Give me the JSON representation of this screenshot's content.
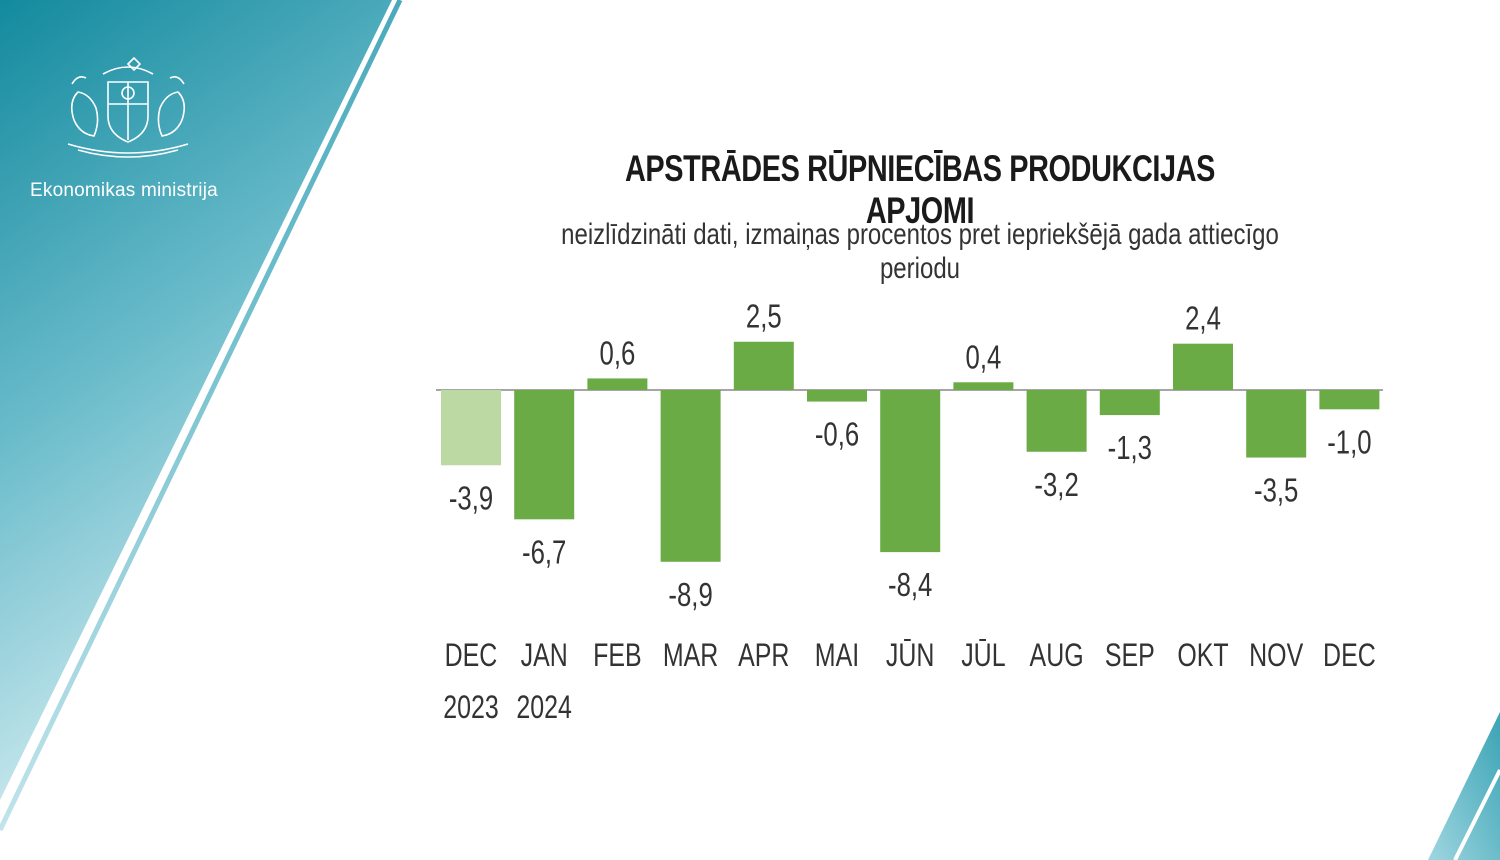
{
  "header": {
    "ministry_name": "Ekonomikas ministrija",
    "emblem_icon": "latvia-coat-of-arms-icon"
  },
  "colors": {
    "background_dark": "#138a9e",
    "background_light": "#d6eef2",
    "bar": "#6aab45",
    "bar_previous_year": "#bcd9a3"
  },
  "chart_data": {
    "type": "bar",
    "title": "APSTRĀDES RŪPNIECĪBAS PRODUKCIJAS APJOMI",
    "subtitle": "neizlīdzināti dati, izmaiņas procentos pret iepriekšējā gada attiecīgo periodu",
    "categories": [
      "DEC",
      "JAN",
      "FEB",
      "MAR",
      "APR",
      "MAI",
      "JŪN",
      "JŪL",
      "AUG",
      "SEP",
      "OKT",
      "NOV",
      "DEC"
    ],
    "year_labels": [
      "2023",
      "2024",
      "",
      "",
      "",
      "",
      "",
      "",
      "",
      "",
      "",
      "",
      ""
    ],
    "values": [
      -3.9,
      -6.7,
      0.6,
      -8.9,
      2.5,
      -0.6,
      -8.4,
      0.4,
      -3.2,
      -1.3,
      2.4,
      -3.5,
      -1.0
    ],
    "value_labels": [
      "-3,9",
      "-6,7",
      "0,6",
      "-8,9",
      "2,5",
      "-0,6",
      "-8,4",
      "0,4",
      "-3,2",
      "-1,3",
      "2,4",
      "-3,5",
      "-1,0"
    ],
    "highlight_first_as_previous_year": true,
    "ylim": [
      -9.5,
      3.5
    ],
    "grid": false,
    "legend": "none"
  }
}
